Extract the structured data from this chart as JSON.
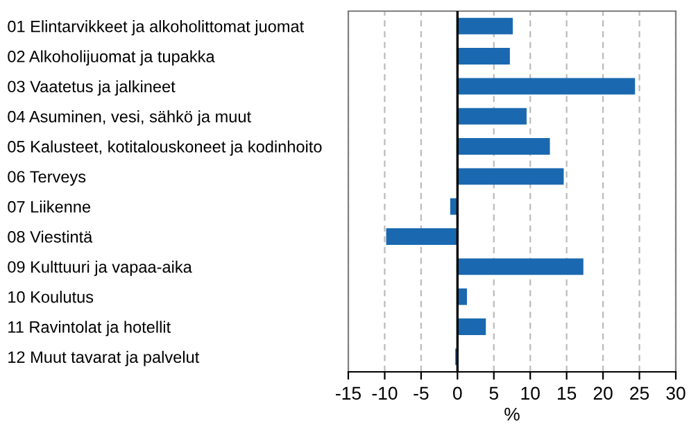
{
  "chart_data": {
    "type": "bar",
    "orientation": "horizontal",
    "xlabel": "%",
    "categories": [
      "01 Elintarvikkeet ja alkoholittomat juomat",
      "02 Alkoholijuomat ja tupakka",
      "03 Vaatetus ja jalkineet",
      "04 Asuminen, vesi, sähkö ja muut",
      "05 Kalusteet, kotitalouskoneet ja kodinhoito",
      "06 Terveys",
      "07 Liikenne",
      "08 Viestintä",
      "09 Kulttuuri ja vapaa-aika",
      "10 Koulutus",
      "11 Ravintolat ja hotellit",
      "12 Muut tavarat ja palvelut"
    ],
    "values": [
      7.6,
      7.2,
      24.4,
      9.5,
      12.7,
      14.6,
      -1.0,
      -9.8,
      17.3,
      1.3,
      3.9,
      -0.3
    ],
    "color": "#1a69b0",
    "xlim": [
      -15,
      30
    ],
    "xticks": [
      -15,
      -10,
      -5,
      0,
      5,
      10,
      15,
      20,
      25,
      30
    ],
    "grid": "x",
    "ref_lines": [
      {
        "axis": "x",
        "value": 0,
        "color": "#000000"
      }
    ]
  }
}
